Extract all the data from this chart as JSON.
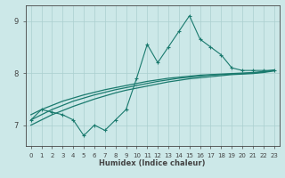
{
  "xlabel": "Humidex (Indice chaleur)",
  "bg_color": "#cce8e8",
  "line_color": "#1a7a6e",
  "grid_color": "#aacfcf",
  "axis_color": "#444444",
  "x_data": [
    0,
    1,
    2,
    3,
    4,
    5,
    6,
    7,
    8,
    9,
    10,
    11,
    12,
    13,
    14,
    15,
    16,
    17,
    18,
    19,
    20,
    21,
    22,
    23
  ],
  "y_main": [
    7.1,
    7.3,
    7.25,
    7.2,
    7.1,
    6.8,
    7.0,
    6.9,
    7.1,
    7.3,
    7.9,
    8.55,
    8.2,
    8.5,
    8.8,
    9.1,
    8.65,
    8.5,
    8.35,
    8.1,
    8.05,
    8.05,
    8.05,
    8.05
  ],
  "y_trend1": [
    7.1,
    7.2,
    7.3,
    7.38,
    7.46,
    7.52,
    7.58,
    7.63,
    7.68,
    7.72,
    7.76,
    7.8,
    7.84,
    7.87,
    7.9,
    7.92,
    7.94,
    7.96,
    7.97,
    7.98,
    7.99,
    8.0,
    8.02,
    8.05
  ],
  "y_trend2": [
    7.2,
    7.3,
    7.38,
    7.46,
    7.52,
    7.58,
    7.63,
    7.68,
    7.72,
    7.76,
    7.8,
    7.84,
    7.87,
    7.9,
    7.92,
    7.94,
    7.96,
    7.97,
    7.98,
    7.99,
    8.0,
    8.01,
    8.03,
    8.06
  ],
  "y_trend3": [
    7.0,
    7.1,
    7.2,
    7.28,
    7.36,
    7.43,
    7.5,
    7.56,
    7.62,
    7.67,
    7.71,
    7.75,
    7.79,
    7.83,
    7.86,
    7.89,
    7.91,
    7.93,
    7.95,
    7.97,
    7.98,
    7.99,
    8.01,
    8.04
  ],
  "ylim": [
    6.6,
    9.3
  ],
  "yticks": [
    7,
    8,
    9
  ],
  "xlim": [
    -0.5,
    23.5
  ],
  "xticks": [
    0,
    1,
    2,
    3,
    4,
    5,
    6,
    7,
    8,
    9,
    10,
    11,
    12,
    13,
    14,
    15,
    16,
    17,
    18,
    19,
    20,
    21,
    22,
    23
  ]
}
